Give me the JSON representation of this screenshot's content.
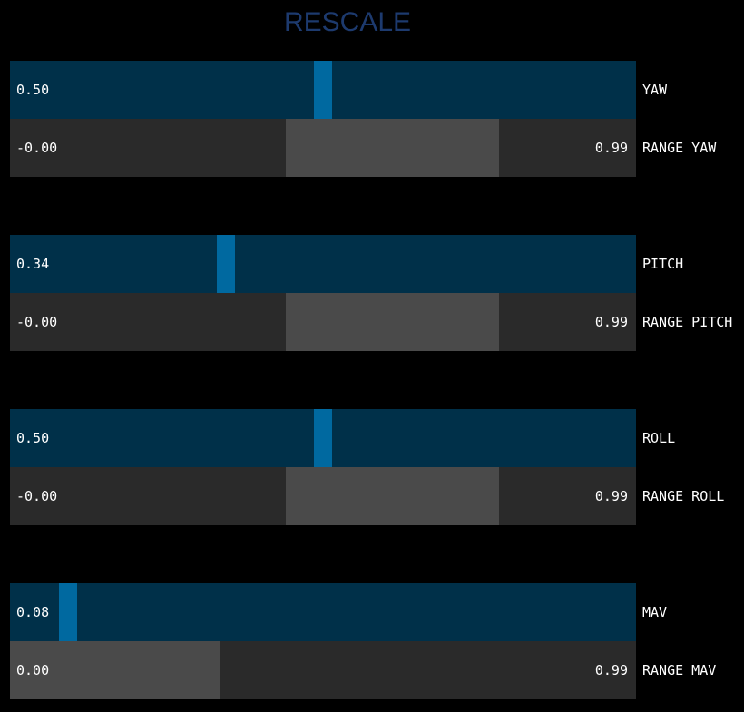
{
  "title": "RESCALE",
  "colors": {
    "slider_bg": "#003049",
    "slider_handle": "#0069a0",
    "range_bg": "#2a2a2a",
    "range_fill": "#4a4a4a",
    "title": "#1d3a6e"
  },
  "groups": [
    {
      "slider": {
        "label": "YAW",
        "value_text": "0.50",
        "value": 0.5
      },
      "range": {
        "label": "RANGE YAW",
        "low_text": "-0.00",
        "high_text": "0.99",
        "low": 0.44,
        "high": 0.78
      }
    },
    {
      "slider": {
        "label": "PITCH",
        "value_text": "0.34",
        "value": 0.34
      },
      "range": {
        "label": "RANGE PITCH",
        "low_text": "-0.00",
        "high_text": "0.99",
        "low": 0.44,
        "high": 0.78
      }
    },
    {
      "slider": {
        "label": "ROLL",
        "value_text": "0.50",
        "value": 0.5
      },
      "range": {
        "label": "RANGE ROLL",
        "low_text": "-0.00",
        "high_text": "0.99",
        "low": 0.44,
        "high": 0.78
      }
    },
    {
      "slider": {
        "label": "MAV",
        "value_text": "0.08",
        "value": 0.08
      },
      "range": {
        "label": "RANGE MAV",
        "low_text": "0.00",
        "high_text": "0.99",
        "low": 0.0,
        "high": 0.335
      }
    }
  ]
}
